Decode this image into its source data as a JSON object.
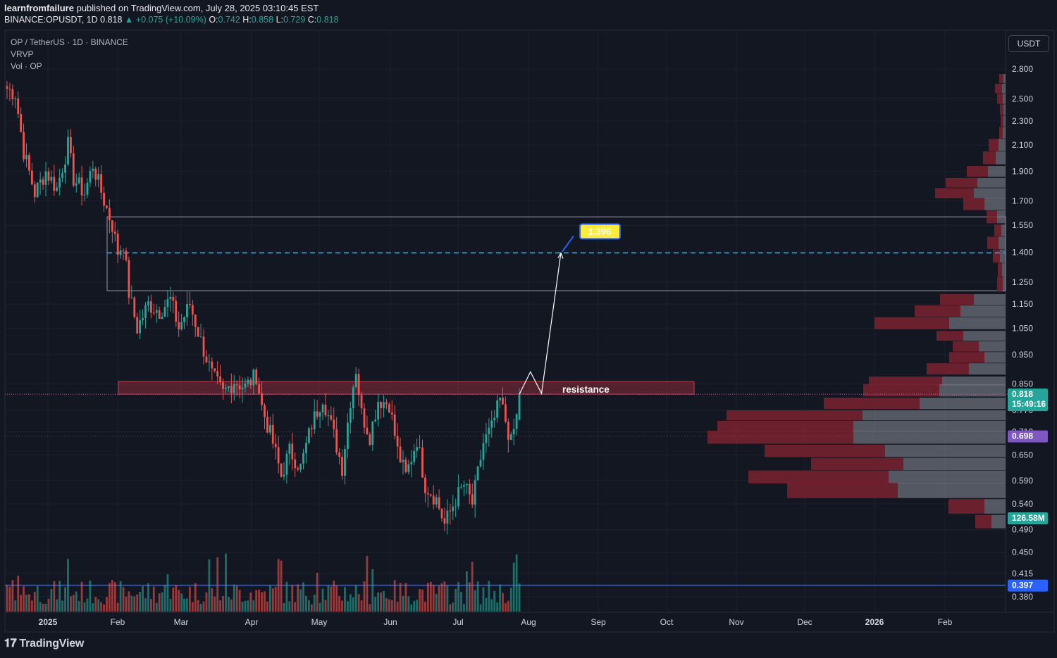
{
  "header": {
    "author": "learnfromfailure",
    "published": " published on TradingView.com, July 28, 2025 03:10:45 EST",
    "symbol": "BINANCE:OPUSDT, 1D",
    "last": "0.818",
    "change": "▲ +0.075 (+10.09%)",
    "o_label": "O:",
    "o": "0.742",
    "h_label": "H:",
    "h": "0.858",
    "l_label": "L:",
    "l": "0.729",
    "c_label": "C:",
    "c": "0.818"
  },
  "legend": {
    "pair": "OP / TetherUS · 1D · BINANCE",
    "vrvp": "VRVP",
    "vol": "Vol · OP"
  },
  "unit_button": "USDT",
  "brand": "TradingView",
  "colors": {
    "background": "#131722",
    "up": "#26a69a",
    "down": "#ef5350",
    "resistance_zone": "#8b2c3a",
    "target_line": "#29b6f6",
    "support_line": "#2962ff",
    "target_label": "#ffeb3b",
    "price_tag": "#26a69a",
    "prev_tag": "#7e57c2"
  },
  "chart_data": {
    "type": "candlestick",
    "title": "OP / TetherUS · 1D · BINANCE",
    "y_ticks": [
      2.8,
      2.5,
      2.3,
      2.1,
      1.9,
      1.7,
      1.55,
      1.4,
      1.25,
      1.15,
      1.05,
      0.95,
      0.85,
      0.77,
      0.71,
      0.65,
      0.59,
      0.54,
      0.49,
      0.45,
      0.415,
      0.38
    ],
    "y_tick_labels": [
      "2.800",
      "2.500",
      "2.300",
      "2.100",
      "1.900",
      "1.700",
      "1.550",
      "1.400",
      "1.250",
      "1.150",
      "1.050",
      "0.950",
      "0.850",
      "0.770",
      "0.710",
      "0.650",
      "0.590",
      "0.540",
      "0.490",
      "0.450",
      "0.415",
      "0.380"
    ],
    "y_scale": "log",
    "x_labels": [
      "2025",
      "Feb",
      "Mar",
      "Apr",
      "May",
      "Jun",
      "Jul",
      "Aug",
      "Sep",
      "Oct",
      "Nov",
      "Dec",
      "2026",
      "Feb"
    ],
    "anchors": [
      {
        "day": 0,
        "price": 2.6
      },
      {
        "day": 3,
        "price": 2.55
      },
      {
        "day": 6,
        "price": 2.05
      },
      {
        "day": 10,
        "price": 1.75
      },
      {
        "day": 14,
        "price": 1.9
      },
      {
        "day": 18,
        "price": 1.78
      },
      {
        "day": 22,
        "price": 2.1
      },
      {
        "day": 24,
        "price": 1.85
      },
      {
        "day": 28,
        "price": 1.75
      },
      {
        "day": 31,
        "price": 1.95
      },
      {
        "day": 35,
        "price": 1.7
      },
      {
        "day": 38,
        "price": 1.55
      },
      {
        "day": 40,
        "price": 1.4
      },
      {
        "day": 42,
        "price": 1.45
      },
      {
        "day": 44,
        "price": 1.2
      },
      {
        "day": 47,
        "price": 1.05
      },
      {
        "day": 51,
        "price": 1.15
      },
      {
        "day": 55,
        "price": 1.12
      },
      {
        "day": 59,
        "price": 1.17
      },
      {
        "day": 62,
        "price": 1.05
      },
      {
        "day": 66,
        "price": 1.15
      },
      {
        "day": 70,
        "price": 1.0
      },
      {
        "day": 74,
        "price": 0.88
      },
      {
        "day": 78,
        "price": 0.82
      },
      {
        "day": 82,
        "price": 0.86
      },
      {
        "day": 86,
        "price": 0.84
      },
      {
        "day": 90,
        "price": 0.88
      },
      {
        "day": 92,
        "price": 0.78
      },
      {
        "day": 96,
        "price": 0.68
      },
      {
        "day": 99,
        "price": 0.6
      },
      {
        "day": 102,
        "price": 0.66
      },
      {
        "day": 106,
        "price": 0.62
      },
      {
        "day": 110,
        "price": 0.73
      },
      {
        "day": 114,
        "price": 0.81
      },
      {
        "day": 118,
        "price": 0.7
      },
      {
        "day": 121,
        "price": 0.62
      },
      {
        "day": 124,
        "price": 0.8
      },
      {
        "day": 126,
        "price": 0.9
      },
      {
        "day": 128,
        "price": 0.76
      },
      {
        "day": 131,
        "price": 0.7
      },
      {
        "day": 134,
        "price": 0.8
      },
      {
        "day": 138,
        "price": 0.79
      },
      {
        "day": 141,
        "price": 0.66
      },
      {
        "day": 144,
        "price": 0.6
      },
      {
        "day": 148,
        "price": 0.69
      },
      {
        "day": 151,
        "price": 0.58
      },
      {
        "day": 155,
        "price": 0.55
      },
      {
        "day": 158,
        "price": 0.5
      },
      {
        "day": 162,
        "price": 0.55
      },
      {
        "day": 165,
        "price": 0.58
      },
      {
        "day": 168,
        "price": 0.54
      },
      {
        "day": 172,
        "price": 0.68
      },
      {
        "day": 175,
        "price": 0.72
      },
      {
        "day": 178,
        "price": 0.8
      },
      {
        "day": 180,
        "price": 0.74
      },
      {
        "day": 182,
        "price": 0.68
      },
      {
        "day": 184,
        "price": 0.75
      },
      {
        "day": 185,
        "price": 0.818
      }
    ],
    "resistance": {
      "label": "resistance",
      "low": 0.818,
      "high": 0.858
    },
    "target": {
      "label": "1.396",
      "price": 1.396
    },
    "target_box": {
      "low": 1.21,
      "high": 1.6
    },
    "support": {
      "price": 0.397,
      "label": "0.397"
    },
    "last_price": {
      "label": "0.818",
      "countdown": "15:49:16"
    },
    "prev_price": {
      "label": "0.698",
      "price": 0.698
    },
    "volume_tag": "126.58M",
    "projection": [
      {
        "day": 185,
        "price": 0.818
      },
      {
        "day": 189,
        "price": 0.89
      },
      {
        "day": 193,
        "price": 0.82
      },
      {
        "day": 200,
        "price": 1.396
      }
    ],
    "vrvp": [
      {
        "price": 2.7,
        "buy": 3,
        "sell": 6
      },
      {
        "price": 2.6,
        "buy": 5,
        "sell": 10
      },
      {
        "price": 2.5,
        "buy": 4,
        "sell": 8
      },
      {
        "price": 2.4,
        "buy": 3,
        "sell": 5
      },
      {
        "price": 2.3,
        "buy": 3,
        "sell": 4
      },
      {
        "price": 2.2,
        "buy": 4,
        "sell": 5
      },
      {
        "price": 2.1,
        "buy": 10,
        "sell": 14
      },
      {
        "price": 2.0,
        "buy": 14,
        "sell": 18
      },
      {
        "price": 1.9,
        "buy": 25,
        "sell": 30
      },
      {
        "price": 1.82,
        "buy": 40,
        "sell": 45
      },
      {
        "price": 1.75,
        "buy": 45,
        "sell": 55
      },
      {
        "price": 1.68,
        "buy": 30,
        "sell": 30
      },
      {
        "price": 1.6,
        "buy": 12,
        "sell": 15
      },
      {
        "price": 1.52,
        "buy": 6,
        "sell": 10
      },
      {
        "price": 1.45,
        "buy": 10,
        "sell": 16
      },
      {
        "price": 1.38,
        "buy": 8,
        "sell": 10
      },
      {
        "price": 1.31,
        "buy": 5,
        "sell": 6
      },
      {
        "price": 1.24,
        "buy": 4,
        "sell": 8
      },
      {
        "price": 1.17,
        "buy": 45,
        "sell": 48
      },
      {
        "price": 1.12,
        "buy": 64,
        "sell": 65
      },
      {
        "price": 1.07,
        "buy": 80,
        "sell": 106
      },
      {
        "price": 1.02,
        "buy": 60,
        "sell": 38
      },
      {
        "price": 0.98,
        "buy": 38,
        "sell": 37
      },
      {
        "price": 0.94,
        "buy": 30,
        "sell": 50
      },
      {
        "price": 0.9,
        "buy": 52,
        "sell": 60
      },
      {
        "price": 0.86,
        "buy": 90,
        "sell": 104
      },
      {
        "price": 0.83,
        "buy": 94,
        "sell": 108
      },
      {
        "price": 0.79,
        "buy": 122,
        "sell": 136
      },
      {
        "price": 0.755,
        "buy": 203,
        "sell": 193
      },
      {
        "price": 0.725,
        "buy": 216,
        "sell": 193
      },
      {
        "price": 0.695,
        "buy": 216,
        "sell": 207
      },
      {
        "price": 0.66,
        "buy": 171,
        "sell": 171
      },
      {
        "price": 0.628,
        "buy": 145,
        "sell": 131
      },
      {
        "price": 0.598,
        "buy": 166,
        "sell": 199
      },
      {
        "price": 0.568,
        "buy": 153,
        "sell": 157
      },
      {
        "price": 0.535,
        "buy": 30,
        "sell": 51
      },
      {
        "price": 0.505,
        "buy": 20,
        "sell": 23
      }
    ]
  }
}
